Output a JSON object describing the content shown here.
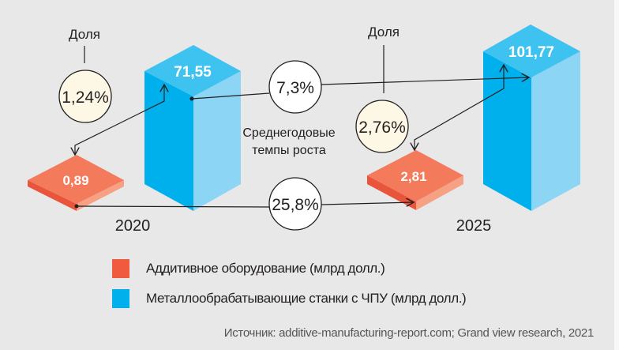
{
  "chart_data": {
    "type": "bar",
    "title": "",
    "categories": [
      "2020",
      "2025"
    ],
    "series": [
      {
        "name": "Аддитивное оборудование (млрд долл.)",
        "values": [
          0.89,
          2.81
        ],
        "labels": [
          "0,89",
          "2,81"
        ],
        "color": "#f05a3e"
      },
      {
        "name": "Металлообрабатывающие станки с ЧПУ (млрд долл.)",
        "values": [
          71.55,
          101.77
        ],
        "labels": [
          "71,55",
          "101,77"
        ],
        "color": "#00b0ec"
      }
    ],
    "share_label": "Доля",
    "shares": [
      {
        "year": "2020",
        "value": 1.24,
        "label": "1,24%"
      },
      {
        "year": "2025",
        "value": 2.76,
        "label": "2,76%"
      }
    ],
    "cagr_caption": [
      "Среднегодовые",
      "темпы роста"
    ],
    "cagr": [
      {
        "series": "Металлообрабатывающие станки с ЧПУ",
        "value": 7.3,
        "label": "7,3%"
      },
      {
        "series": "Аддитивное оборудование",
        "value": 25.8,
        "label": "25,8%"
      }
    ],
    "source": "Источник: additive-manufacturing-report.com; Grand view research, 2021"
  }
}
